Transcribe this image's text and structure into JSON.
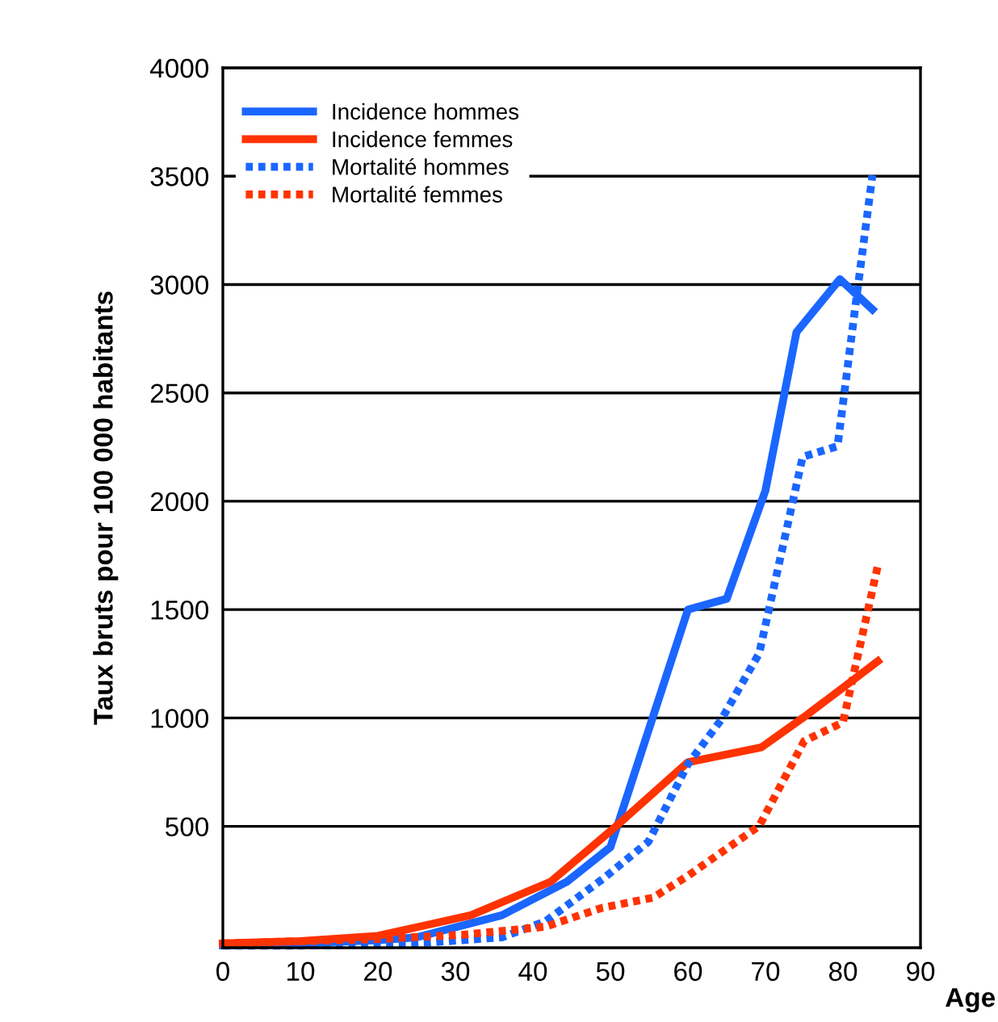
{
  "chart_data": {
    "type": "line",
    "xlabel": "Age",
    "ylabel": "Taux bruts pour 100 000 habitants",
    "xlim": [
      0,
      90
    ],
    "xticks": [
      0,
      10,
      20,
      30,
      40,
      50,
      60,
      70,
      80,
      90
    ],
    "ylim": [
      -60,
      4000
    ],
    "yticks": [
      500,
      1000,
      1500,
      2000,
      2500,
      3000,
      3500,
      4000
    ],
    "grid": "y",
    "legend": "top left",
    "series": [
      {
        "name": "Incidence hommes",
        "color": "#1a66ff",
        "line_style": "solid",
        "x": [
          0,
          10,
          20,
          25,
          36,
          44.4,
          50,
          60,
          65,
          70,
          74,
          79.6,
          83.8
        ],
        "values": [
          -49,
          -40,
          -25,
          -12,
          90,
          245,
          404,
          1500,
          1550,
          2050,
          2780,
          3025,
          2885
        ]
      },
      {
        "name": "Incidence femmes",
        "color": "#ff3300",
        "line_style": "solid",
        "x": [
          0,
          10,
          20,
          32,
          42.3,
          50,
          60,
          69.5,
          75,
          80,
          84.5
        ],
        "values": [
          -40,
          -30,
          -5,
          90,
          245,
          478,
          796,
          865,
          1005,
          1140,
          1262
        ]
      },
      {
        "name": "Mortalité hommes",
        "color": "#1a66ff",
        "line_style": "dotted",
        "x": [
          0,
          10,
          20,
          25,
          36,
          41.6,
          49,
          54.9,
          60,
          64.3,
          69.2,
          74.8,
          79.3,
          81.7,
          83.8
        ],
        "values": [
          -50,
          -50,
          -45,
          -40,
          -12,
          61,
          257,
          429,
          787,
          992,
          1299,
          2205,
          2254,
          2928,
          3504
        ]
      },
      {
        "name": "Mortalité femmes",
        "color": "#ff3300",
        "line_style": "dotted",
        "x": [
          0,
          10,
          20,
          31,
          41.6,
          49,
          55.5,
          60,
          69.2,
          75,
          80,
          84.5
        ],
        "values": [
          -40,
          -30,
          -20,
          0,
          37,
          125,
          171,
          272,
          502,
          894,
          980,
          1703
        ]
      }
    ]
  }
}
